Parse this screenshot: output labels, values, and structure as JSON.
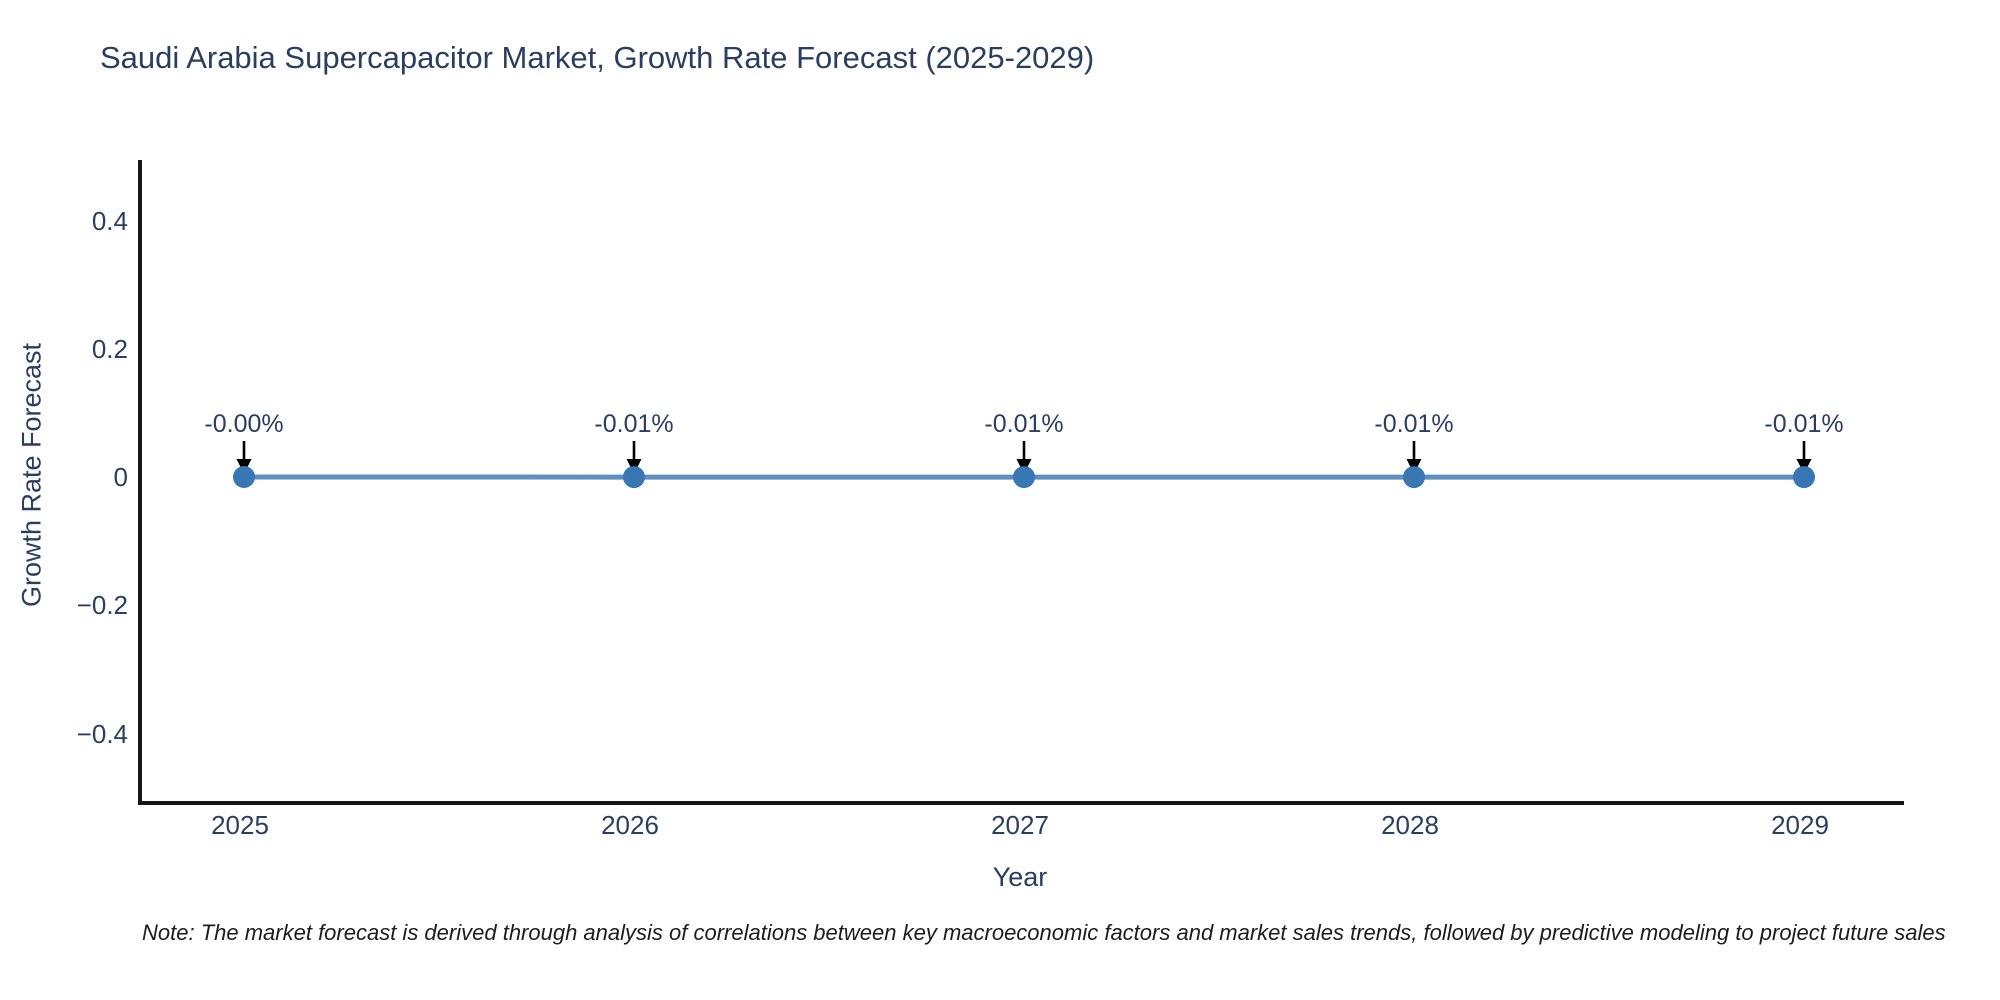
{
  "page": {
    "background": "#ffffff"
  },
  "chart_data": {
    "type": "line",
    "title": "Saudi Arabia Supercapacitor Market, Growth Rate Forecast (2025-2029)",
    "xlabel": "Year",
    "ylabel": "Growth Rate Forecast",
    "x": [
      2025,
      2026,
      2027,
      2028,
      2029
    ],
    "x_tick_labels": [
      "2025",
      "2026",
      "2027",
      "2028",
      "2029"
    ],
    "series": [
      {
        "name": "Growth Rate Forecast",
        "values_percent": [
          0.0,
          -0.01,
          -0.01,
          -0.01,
          -0.01
        ],
        "point_labels": [
          "-0.00%",
          "-0.01%",
          "-0.01%",
          "-0.01%",
          "-0.01%"
        ]
      }
    ],
    "y_tick_labels": [
      "0.4",
      "0.2",
      "0",
      "−0.2",
      "−0.4"
    ],
    "y_tick_values": [
      0.4,
      0.2,
      0,
      -0.2,
      -0.4
    ],
    "ylim": [
      -0.5,
      0.5
    ],
    "grid": false,
    "legend": "none",
    "colors": {
      "line": "#5d8fbf",
      "marker": "#3876b4",
      "arrow": "#000000",
      "text": "#2a3f5f",
      "axis": "#161616"
    }
  },
  "footnote": "Note: The market forecast is derived through analysis of correlations between key macroeconomic factors and market sales trends, followed by predictive modeling to project future sales"
}
